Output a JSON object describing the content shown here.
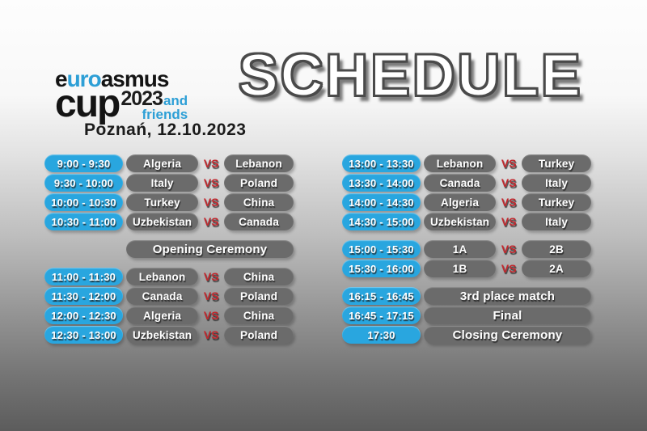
{
  "header": {
    "title": "SCHEDULE",
    "location_date": "Poznań, 12.10.2023",
    "logo": {
      "e": "e",
      "uro": "uro",
      "asmus": "asmus",
      "cup": "cup",
      "year": "2023",
      "and": "and",
      "friends": "friends"
    }
  },
  "labels": {
    "vs": "VS"
  },
  "colors": {
    "time_pill_blue": "#29a6df",
    "team_pill_gray": "#6b6b6b",
    "vs_red": "#c1272d",
    "logo_blue": "#2d9fd6",
    "title_fill": "#ffffff",
    "title_outline": "#4a4a4a",
    "background_top": "#fdfdfd",
    "background_bottom": "#5c5c5c"
  },
  "columns": {
    "left": {
      "rows": [
        {
          "type": "match",
          "time": "9:00 - 9:30",
          "home": "Algeria",
          "away": "Lebanon"
        },
        {
          "type": "match",
          "time": "9:30 - 10:00",
          "home": "Italy",
          "away": "Poland"
        },
        {
          "type": "match",
          "time": "10:00 - 10:30",
          "home": "Turkey",
          "away": "China"
        },
        {
          "type": "match",
          "time": "10:30 - 11:00",
          "home": "Uzbekistan",
          "away": "Canada"
        },
        {
          "type": "event",
          "label": "Opening Ceremony"
        },
        {
          "type": "match",
          "time": "11:00 - 11:30",
          "home": "Lebanon",
          "away": "China"
        },
        {
          "type": "match",
          "time": "11:30 - 12:00",
          "home": "Canada",
          "away": "Poland"
        },
        {
          "type": "match",
          "time": "12:00 - 12:30",
          "home": "Algeria",
          "away": "China"
        },
        {
          "type": "match",
          "time": "12:30 - 13:00",
          "home": "Uzbekistan",
          "away": "Poland"
        }
      ]
    },
    "right": {
      "rows": [
        {
          "type": "match",
          "time": "13:00 - 13:30",
          "home": "Lebanon",
          "away": "Turkey"
        },
        {
          "type": "match",
          "time": "13:30 - 14:00",
          "home": "Canada",
          "away": "Italy"
        },
        {
          "type": "match",
          "time": "14:00 - 14:30",
          "home": "Algeria",
          "away": "Turkey"
        },
        {
          "type": "match",
          "time": "14:30 - 15:00",
          "home": "Uzbekistan",
          "away": "Italy"
        },
        {
          "type": "match",
          "time": "15:00 - 15:30",
          "home": "1A",
          "away": "2B"
        },
        {
          "type": "match",
          "time": "15:30 - 16:00",
          "home": "1B",
          "away": "2A"
        },
        {
          "type": "event",
          "time": "16:15 - 16:45",
          "label": "3rd place match"
        },
        {
          "type": "event",
          "time": "16:45 - 17:15",
          "label": "Final"
        },
        {
          "type": "event",
          "time": "17:30",
          "label": "Closing Ceremony"
        }
      ]
    }
  }
}
